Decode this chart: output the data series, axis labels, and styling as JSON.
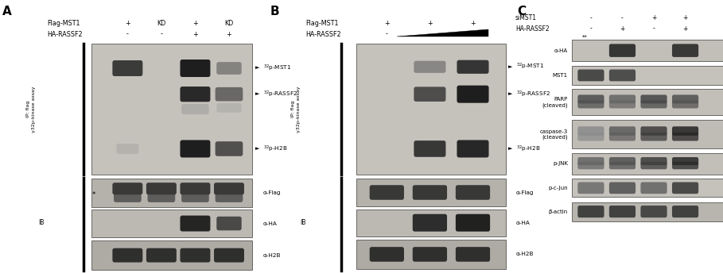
{
  "panel_A": {
    "label": "A",
    "gel_fc": "#c8c5c0",
    "ib_flag_fc": "#b8b5b0",
    "ib_ha_fc": "#c0bdb8",
    "ib_h2b_fc": "#b0ada8",
    "lanes": [
      0.33,
      0.5,
      0.67,
      0.84
    ],
    "header1_label": "Flag-MST1",
    "header1_vals": [
      "+",
      "KD",
      "+",
      "KD"
    ],
    "header2_label": "HA-RASSF2",
    "header2_vals": [
      "-",
      "-",
      "+",
      "+"
    ]
  },
  "panel_B": {
    "label": "B",
    "gel_fc": "#c8c5c0",
    "ib_flag_fc": "#b8b5b0",
    "ib_ha_fc": "#c0bdb8",
    "ib_h2b_fc": "#b0ada8",
    "lanes": [
      0.28,
      0.55,
      0.82
    ],
    "header1_label": "Flag-MST1",
    "header1_vals": [
      "+",
      "+",
      "+"
    ],
    "header2_label": "HA-RASSF2",
    "header2_vals": [
      "-",
      "",
      ""
    ]
  },
  "panel_C": {
    "label": "C",
    "blot_fc": "#c8c5c0",
    "lanes": [
      0.3,
      0.47,
      0.64,
      0.81
    ],
    "header1_label": "siMST1",
    "header1_vals": [
      "-",
      "-",
      "+",
      "+"
    ],
    "header2_label": "HA-RASSF2",
    "header2_vals": [
      "-",
      "+",
      "-",
      "+"
    ],
    "blot_labels": [
      "α-HA",
      "MST1",
      "PARP\n(cleaved)",
      "caspase-3\n(cleaved)",
      "p-JNK",
      "p-c-Jun",
      "β-actin"
    ]
  }
}
